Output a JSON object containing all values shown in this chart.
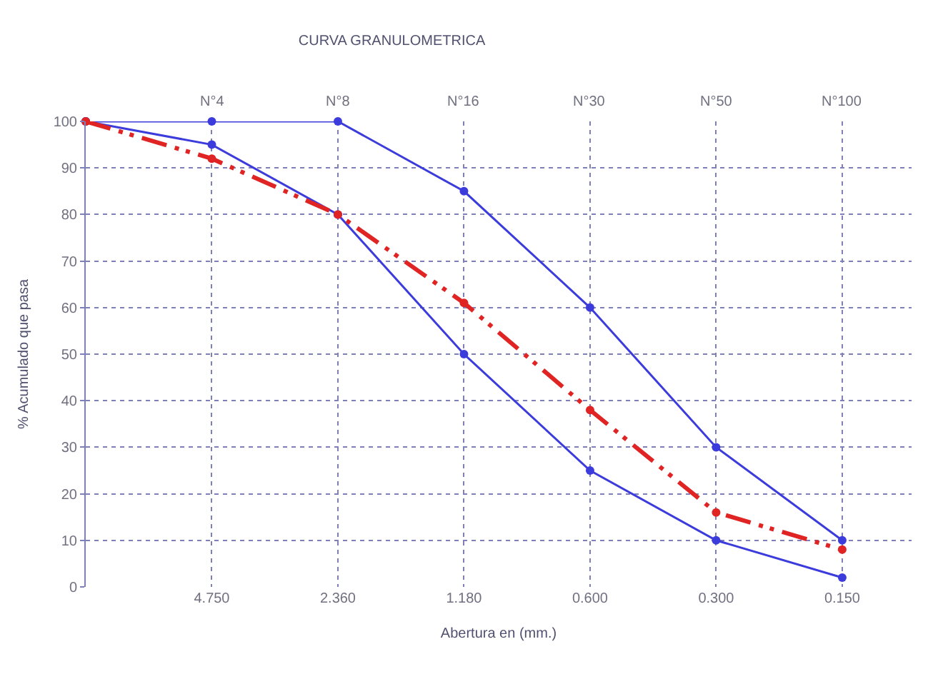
{
  "chart_data": {
    "type": "line",
    "title": "CURVA GRANULOMETRICA",
    "xlabel": "Abertura en (mm.)",
    "ylabel": "% Acumulado que pasa",
    "categories": [
      null,
      "4.750",
      "2.360",
      "1.180",
      "0.600",
      "0.300",
      "0.150"
    ],
    "annotations": [
      "N°4",
      "N°8",
      "N°16",
      "N°30",
      "N°50",
      "N°100"
    ],
    "series": [
      {
        "color": "#3c3cdc",
        "values": [
          100,
          100,
          100,
          85,
          60,
          30,
          10
        ],
        "line_style": "solid"
      },
      {
        "color": "#3c3cdc",
        "values": [
          100,
          95,
          80,
          50,
          25,
          10,
          2
        ],
        "line_style": "solid"
      },
      {
        "color": "#e02424",
        "values": [
          100,
          92,
          80,
          61,
          38,
          16,
          8
        ],
        "line_style": "dashed"
      }
    ],
    "ylim": [
      0,
      100
    ],
    "yticks": [
      0,
      10,
      20,
      30,
      40,
      50,
      60,
      70,
      80,
      90,
      100
    ],
    "grid": true,
    "marker": "circle"
  }
}
